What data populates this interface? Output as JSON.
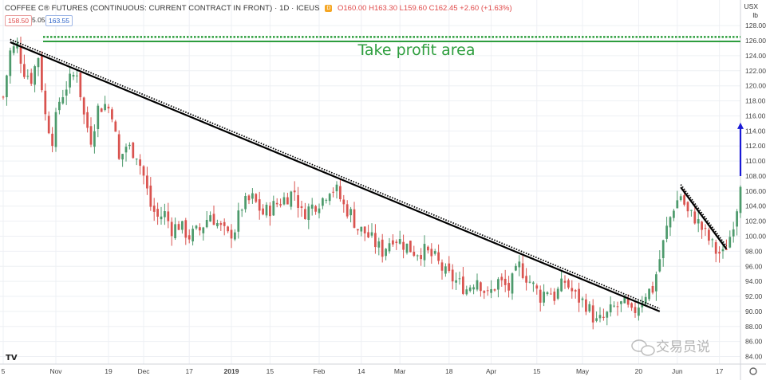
{
  "header": {
    "title": "COFFEE C® FUTURES (CONTINUOUS: CURRENT CONTRACT IN FRONT) · 1D · ICEUS",
    "badge": "D",
    "ohlc": "O160.00 H163.30 L159.60 C162.45 +2.60 (+1.63%)",
    "bid": "158.50",
    "spread": "5.05",
    "ask": "163.55"
  },
  "axis_unit": {
    "currency": "USX",
    "unit": "lb"
  },
  "watermark": "交易员说",
  "annotation_text": "Take profit area",
  "colors": {
    "up": "#4d9a6c",
    "down": "#d9534f",
    "take_profit": "#2e9e3e",
    "trendline": "#000000",
    "target_arrow": "#1a1ad6",
    "grid": "#eef0f4"
  },
  "chart_data": {
    "type": "candlestick",
    "yaxis": {
      "ticks": [
        84,
        86,
        88,
        90,
        92,
        94,
        96,
        98,
        100,
        102,
        104,
        106,
        108,
        110,
        112,
        114,
        116,
        118,
        120,
        122,
        124,
        126,
        128
      ],
      "range": [
        83,
        129.5
      ],
      "side": "right"
    },
    "xaxis": {
      "range": [
        0,
        210
      ],
      "ticks": [
        {
          "label": "5",
          "x": 0
        },
        {
          "label": "Nov",
          "x": 15
        },
        {
          "label": "19",
          "x": 30
        },
        {
          "label": "Dec",
          "x": 40
        },
        {
          "label": "17",
          "x": 53
        },
        {
          "label": "2019",
          "x": 65,
          "bold": true
        },
        {
          "label": "15",
          "x": 76
        },
        {
          "label": "Feb",
          "x": 90
        },
        {
          "label": "14",
          "x": 102
        },
        {
          "label": "Mar",
          "x": 113
        },
        {
          "label": "18",
          "x": 127
        },
        {
          "label": "Apr",
          "x": 139
        },
        {
          "label": "15",
          "x": 152
        },
        {
          "label": "May",
          "x": 165
        },
        {
          "label": "20",
          "x": 181
        },
        {
          "label": "Jun",
          "x": 192
        },
        {
          "label": "17",
          "x": 204
        }
      ]
    },
    "waypoints": [
      [
        0,
        118.5
      ],
      [
        2,
        124.5
      ],
      [
        4,
        125.3
      ],
      [
        6,
        122
      ],
      [
        8,
        121
      ],
      [
        10,
        124
      ],
      [
        12,
        116
      ],
      [
        14,
        113
      ],
      [
        16,
        118
      ],
      [
        18,
        120
      ],
      [
        21,
        122
      ],
      [
        23,
        116
      ],
      [
        25,
        113
      ],
      [
        27,
        117
      ],
      [
        29,
        117.5
      ],
      [
        31,
        116.5
      ],
      [
        33,
        110
      ],
      [
        35,
        112
      ],
      [
        38,
        111
      ],
      [
        40,
        108
      ],
      [
        42,
        104
      ],
      [
        44,
        102.5
      ],
      [
        46,
        103
      ],
      [
        48,
        101
      ],
      [
        50,
        101.5
      ],
      [
        53,
        100
      ],
      [
        56,
        100.8
      ],
      [
        59,
        103
      ],
      [
        62,
        101
      ],
      [
        64,
        100
      ],
      [
        66,
        101
      ],
      [
        68,
        104
      ],
      [
        71,
        105
      ],
      [
        74,
        103
      ],
      [
        77,
        104
      ],
      [
        80,
        105
      ],
      [
        83,
        106
      ],
      [
        85,
        103
      ],
      [
        88,
        104
      ],
      [
        91,
        105
      ],
      [
        93,
        106.5
      ],
      [
        95,
        106
      ],
      [
        97,
        104
      ],
      [
        99,
        103
      ],
      [
        101,
        101
      ],
      [
        103,
        100.5
      ],
      [
        106,
        99
      ],
      [
        108,
        98
      ],
      [
        111,
        100
      ],
      [
        114,
        99
      ],
      [
        117,
        98
      ],
      [
        120,
        98
      ],
      [
        123,
        97
      ],
      [
        126,
        95
      ],
      [
        129,
        94
      ],
      [
        132,
        93
      ],
      [
        135,
        94.5
      ],
      [
        138,
        92
      ],
      [
        141,
        94
      ],
      [
        144,
        93
      ],
      [
        147,
        96
      ],
      [
        150,
        94
      ],
      [
        153,
        92
      ],
      [
        155,
        93
      ],
      [
        157,
        92
      ],
      [
        160,
        94
      ],
      [
        163,
        92
      ],
      [
        166,
        91
      ],
      [
        169,
        88.5
      ],
      [
        171,
        89
      ],
      [
        174,
        90.5
      ],
      [
        177,
        91
      ],
      [
        179,
        89.5
      ],
      [
        181,
        91
      ],
      [
        183,
        92.5
      ],
      [
        185,
        93
      ],
      [
        187,
        97
      ],
      [
        189,
        101
      ],
      [
        191,
        104
      ],
      [
        193,
        105.5
      ],
      [
        195,
        103
      ],
      [
        197,
        102.5
      ],
      [
        199,
        101
      ],
      [
        201,
        99.5
      ],
      [
        203,
        98
      ],
      [
        205,
        97.5
      ],
      [
        207,
        100
      ],
      [
        209,
        104
      ],
      [
        210,
        107.5
      ]
    ],
    "annotations": {
      "take_profit_levels": [
        126.5,
        125.9
      ],
      "main_trendline": {
        "from": [
          2,
          125.8
        ],
        "to": [
          187,
          90
        ]
      },
      "short_trendline": {
        "from": [
          193,
          106.5
        ],
        "to": [
          206,
          98.3
        ]
      },
      "target_arrow": {
        "x": 210,
        "from": 108,
        "to": 115
      }
    }
  }
}
